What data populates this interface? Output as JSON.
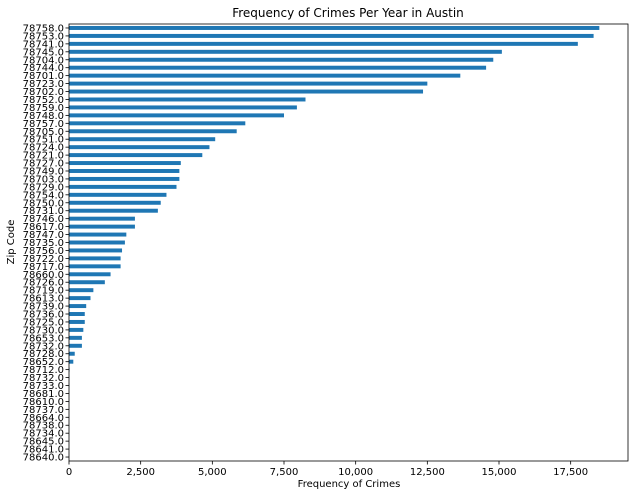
{
  "chart_data": {
    "type": "bar",
    "orientation": "horizontal",
    "title": "Frequency of Crimes Per Year in Austin",
    "xlabel": "Frequency of Crimes",
    "ylabel": "Zip Code",
    "xlim": [
      0,
      19500
    ],
    "xticks": [
      0,
      2500,
      5000,
      7500,
      10000,
      12500,
      15000,
      17500
    ],
    "xtick_labels": [
      "0",
      "2,500",
      "5,000",
      "7,500",
      "10,000",
      "12,500",
      "15,000",
      "17,500"
    ],
    "bar_color": "#1f77b4",
    "grid": false,
    "categories": [
      "78758.0",
      "78753.0",
      "78741.0",
      "78745.0",
      "78704.0",
      "78744.0",
      "78701.0",
      "78723.0",
      "78702.0",
      "78752.0",
      "78759.0",
      "78748.0",
      "78757.0",
      "78705.0",
      "78751.0",
      "78724.0",
      "78721.0",
      "78727.0",
      "78749.0",
      "78703.0",
      "78729.0",
      "78754.0",
      "78750.0",
      "78731.0",
      "78746.0",
      "78617.0",
      "78747.0",
      "78735.0",
      "78756.0",
      "78722.0",
      "78717.0",
      "78660.0",
      "78726.0",
      "78719.0",
      "78613.0",
      "78739.0",
      "78736.0",
      "78725.0",
      "78730.0",
      "78653.0",
      "78732.0",
      "78728.0",
      "78652.0",
      "78712.0",
      "78732.0",
      "78733.0",
      "78681.0",
      "78610.0",
      "78737.0",
      "78664.0",
      "78738.0",
      "78734.0",
      "78645.0",
      "78641.0",
      "78640.0"
    ],
    "values": [
      18500,
      18300,
      17750,
      15100,
      14800,
      14550,
      13650,
      12500,
      12350,
      8250,
      7950,
      7500,
      6150,
      5850,
      5100,
      4900,
      4650,
      3900,
      3850,
      3850,
      3750,
      3400,
      3200,
      3100,
      2300,
      2300,
      2000,
      1950,
      1850,
      1800,
      1800,
      1450,
      1250,
      850,
      750,
      600,
      550,
      550,
      500,
      450,
      450,
      200,
      150,
      20,
      10,
      8,
      6,
      5,
      4,
      3,
      2,
      2,
      1,
      1,
      1
    ]
  }
}
